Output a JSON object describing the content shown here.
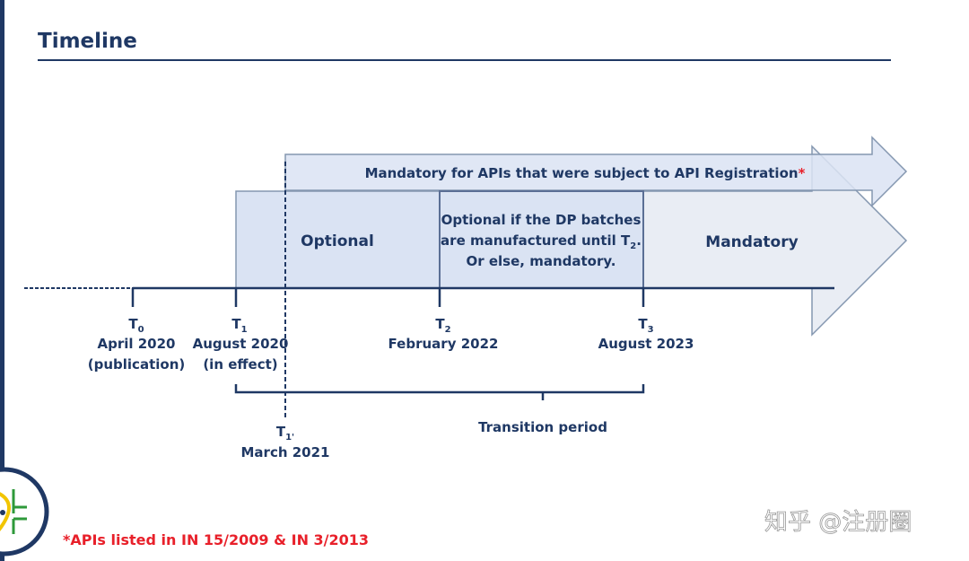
{
  "title": "Timeline",
  "top_arrow": {
    "label": "Mandatory for APIs that were subject to API Registration",
    "asterisk": "*"
  },
  "phases": {
    "optional": "Optional",
    "conditional": [
      "Optional if the DP batches",
      "are manufactured until T",
      "Or else, mandatory."
    ],
    "conditional_sub": "2",
    "conditional_end": ".",
    "mandatory": "Mandatory"
  },
  "milestones": [
    {
      "t": "T",
      "sub": "0",
      "lines": [
        "April 2020",
        "(publication)"
      ]
    },
    {
      "t": "T",
      "sub": "1",
      "lines": [
        "August 2020",
        "(in effect)"
      ]
    },
    {
      "t": "T",
      "sub": "2",
      "lines": [
        "February 2022"
      ]
    },
    {
      "t": "T",
      "sub": "3",
      "lines": [
        "August 2023"
      ]
    },
    {
      "t": "T",
      "sub": "1'",
      "lines": [
        "March 2021"
      ]
    }
  ],
  "transition_label": "Transition period",
  "footnote": "*APIs listed in IN 15/2009 & IN 3/2013",
  "watermark": "知乎 @注册圈",
  "colors": {
    "navy": "#1f3864",
    "light_blue": "#dae3f3",
    "light_gray": "#e9edf4",
    "red": "#e8202a"
  }
}
